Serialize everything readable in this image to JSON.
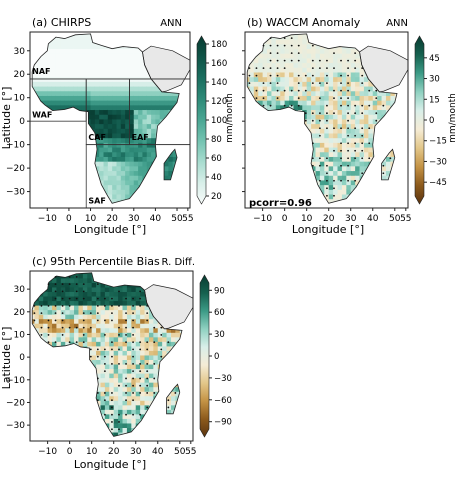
{
  "figure": {
    "colors": {
      "ocean": "#ffffff",
      "land_missing": "#e8e8e8",
      "coast": "#222222",
      "region_box": "#333333"
    }
  },
  "chart_data": [
    {
      "type": "heatmap",
      "panel_label": "(a) CHIRPS",
      "corner_label": "ANN",
      "xlabel": "Longitude [°]",
      "ylabel": "Latitude [°]",
      "xlim": [
        -18,
        56
      ],
      "ylim": [
        -37,
        38
      ],
      "xticks": [
        -10,
        0,
        10,
        20,
        30,
        40,
        50,
        55
      ],
      "xtick_labels": [
        "−10",
        "0",
        "10",
        "20",
        "30",
        "40",
        "50",
        "55"
      ],
      "yticks": [
        30,
        20,
        10,
        0,
        -10,
        -20,
        -30
      ],
      "ytick_labels": [
        "30",
        "20",
        "10",
        "0",
        "−10",
        "−20",
        "−30"
      ],
      "colorbar": {
        "label": "mm/month",
        "min": 20,
        "max": 180,
        "ticks": [
          20,
          40,
          60,
          80,
          100,
          120,
          140,
          160,
          180
        ],
        "tick_labels": [
          "20",
          "40",
          "60",
          "80",
          "100",
          "120",
          "140",
          "160",
          "180"
        ],
        "colors": [
          "#f7fbfa",
          "#d8efe9",
          "#a8dccf",
          "#74c3b1",
          "#4aa693",
          "#2e8a78",
          "#1b6e5f",
          "#0f5447",
          "#083b31"
        ]
      },
      "regions": [
        {
          "name": "NAF",
          "lon": [
            -18,
            56
          ],
          "lat": [
            18,
            38
          ]
        },
        {
          "name": "WAF",
          "lon": [
            -18,
            8
          ],
          "lat": [
            0,
            18
          ]
        },
        {
          "name": "CAF",
          "lon": [
            8,
            28
          ],
          "lat": [
            -10,
            18
          ]
        },
        {
          "name": "EAF",
          "lon": [
            28,
            56
          ],
          "lat": [
            -10,
            18
          ]
        },
        {
          "name": "SAF",
          "lon": [
            8,
            56
          ],
          "lat": [
            -37,
            -10
          ]
        }
      ],
      "description_values": {
        "sahara": 20,
        "sahel": 45,
        "gulf_guinea": 150,
        "congo": 170,
        "east_africa": 60,
        "southern_africa": 60,
        "madagascar_east": 120
      }
    },
    {
      "type": "heatmap",
      "panel_label": "(b) WACCM Anomaly",
      "corner_label": "ANN",
      "xlabel": "Longitude [°]",
      "xlim": [
        -18,
        56
      ],
      "ylim": [
        -37,
        38
      ],
      "xticks": [
        -10,
        0,
        10,
        20,
        30,
        40,
        50,
        55
      ],
      "xtick_labels": [
        "−10",
        "0",
        "10",
        "20",
        "30",
        "40",
        "50",
        "55"
      ],
      "yticks": [
        30,
        20,
        10,
        0,
        -10,
        -20,
        -30
      ],
      "annotation": "pcorr=0.96",
      "colorbar": {
        "label": "mm/month",
        "min": -55,
        "max": 55,
        "ticks": [
          45,
          30,
          15,
          0,
          -15,
          -30,
          -45
        ],
        "tick_labels": [
          "45",
          "30",
          "15",
          "0",
          "−15",
          "−30",
          "−45"
        ],
        "colors": [
          "#5a3410",
          "#8c5a1c",
          "#c49345",
          "#e3c78a",
          "#f5ecd6",
          "#d9efe9",
          "#8fd1c1",
          "#3c9b86",
          "#16614f",
          "#083b31"
        ]
      },
      "stippling": true
    },
    {
      "type": "heatmap",
      "panel_label": "(c) 95th Percentile Bias",
      "corner_label": "R. Diff.",
      "xlabel": "Longitude [°]",
      "ylabel": "Latitude [°]",
      "xlim": [
        -18,
        56
      ],
      "ylim": [
        -37,
        38
      ],
      "xticks": [
        -10,
        0,
        10,
        20,
        30,
        40,
        50,
        55
      ],
      "xtick_labels": [
        "−10",
        "0",
        "10",
        "20",
        "30",
        "40",
        "50",
        "55"
      ],
      "yticks": [
        30,
        20,
        10,
        0,
        -10,
        -20,
        -30
      ],
      "ytick_labels": [
        "30",
        "20",
        "10",
        "0",
        "−10",
        "−20",
        "−30"
      ],
      "colorbar": {
        "label": "[%]",
        "min": -100,
        "max": 100,
        "ticks": [
          90,
          60,
          30,
          0,
          -30,
          -60,
          -90
        ],
        "tick_labels": [
          "90",
          "60",
          "30",
          "0",
          "−30",
          "−60",
          "−90"
        ],
        "colors": [
          "#5a3410",
          "#8c5a1c",
          "#c49345",
          "#e3c78a",
          "#f5ecd6",
          "#d9efe9",
          "#8fd1c1",
          "#3c9b86",
          "#16614f",
          "#083b31"
        ]
      },
      "stippling": true
    }
  ]
}
